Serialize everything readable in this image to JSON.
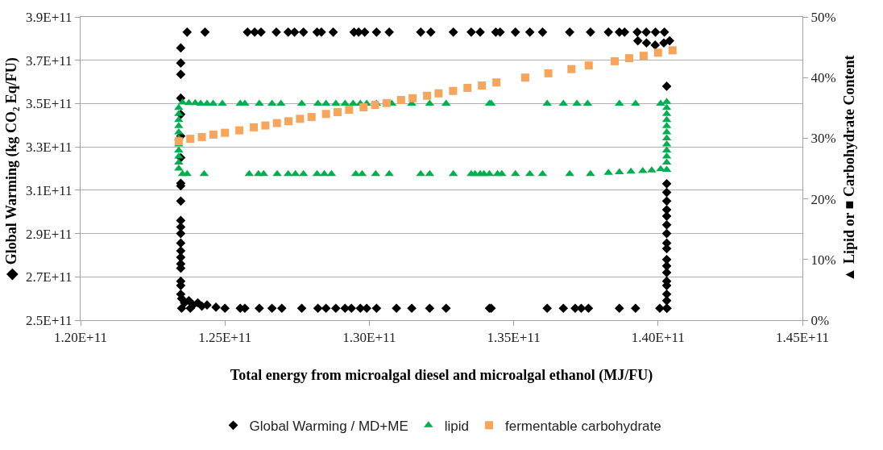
{
  "chart_data": {
    "type": "scatter",
    "xlabel": "Total energy from microalgal diesel and microalgal ethanol (MJ/FU)",
    "ylabel": "◆ Global Warming (kg CO₂ Eq/FU)",
    "y2label": "▲ Lipid or ■ Carbohydrate Content",
    "xlim": [
      120000000000.0,
      145000000000.0
    ],
    "xticks": [
      {
        "value": 120000000000.0,
        "label": "1.20E+11"
      },
      {
        "value": 125000000000.0,
        "label": "1.25E+11"
      },
      {
        "value": 130000000000.0,
        "label": "1.30E+11"
      },
      {
        "value": 135000000000.0,
        "label": "1.35E+11"
      },
      {
        "value": 140000000000.0,
        "label": "1.40E+11"
      },
      {
        "value": 145000000000.0,
        "label": "1.45E+11"
      }
    ],
    "ylim": [
      250000000000.0,
      390000000000.0
    ],
    "yticks": [
      {
        "value": 250000000000.0,
        "label": "2.5E+11"
      },
      {
        "value": 270000000000.0,
        "label": "2.7E+11"
      },
      {
        "value": 290000000000.0,
        "label": "2.9E+11"
      },
      {
        "value": 310000000000.0,
        "label": "3.1E+11"
      },
      {
        "value": 330000000000.0,
        "label": "3.3E+11"
      },
      {
        "value": 350000000000.0,
        "label": "3.5E+11"
      },
      {
        "value": 370000000000.0,
        "label": "3.7E+11"
      },
      {
        "value": 390000000000.0,
        "label": "3.9E+11"
      }
    ],
    "y2lim": [
      0,
      50
    ],
    "y2ticks": [
      {
        "value": 0,
        "label": "0%"
      },
      {
        "value": 10,
        "label": "10%"
      },
      {
        "value": 20,
        "label": "20%"
      },
      {
        "value": 30,
        "label": "30%"
      },
      {
        "value": 40,
        "label": "40%"
      },
      {
        "value": 50,
        "label": "50%"
      }
    ],
    "grid": "y",
    "legend": "bottom",
    "series": [
      {
        "name": "Global Warming / MD+ME",
        "color": "#000000",
        "marker": "diamond",
        "x": [
          123470000000.0,
          123470000000.0,
          123470000000.0,
          123470000000.0,
          123470000000.0,
          123470000000.0,
          123470000000.0,
          123470000000.0,
          123470000000.0,
          123470000000.0,
          123470000000.0,
          123470000000.0,
          123470000000.0,
          123470000000.0,
          123470000000.0,
          123470000000.0,
          123470000000.0,
          123470000000.0,
          123470000000.0,
          123470000000.0,
          123470000000.0,
          123690000000.0,
          124310000000.0,
          125780000000.0,
          126030000000.0,
          126250000000.0,
          126780000000.0,
          127190000000.0,
          127410000000.0,
          127720000000.0,
          128190000000.0,
          128340000000.0,
          128750000000.0,
          129470000000.0,
          129630000000.0,
          129840000000.0,
          130250000000.0,
          130690000000.0,
          131780000000.0,
          132130000000.0,
          132910000000.0,
          133530000000.0,
          133840000000.0,
          134380000000.0,
          134530000000.0,
          135060000000.0,
          135560000000.0,
          136000000000.0,
          136940000000.0,
          137660000000.0,
          138280000000.0,
          138660000000.0,
          138840000000.0,
          139280000000.0,
          139590000000.0,
          139910000000.0,
          140220000000.0,
          139300000000.0,
          139600000000.0,
          139900000000.0,
          140200000000.0,
          140400000000.0,
          140300000000.0,
          140300000000.0,
          140300000000.0,
          140300000000.0,
          140300000000.0,
          140300000000.0,
          140300000000.0,
          140300000000.0,
          140300000000.0,
          140300000000.0,
          140300000000.0,
          140300000000.0,
          140300000000.0,
          140300000000.0,
          140300000000.0,
          140300000000.0,
          140300000000.0,
          140300000000.0,
          123500000000.0,
          123600000000.0,
          123750000000.0,
          123900000000.0,
          124060000000.0,
          124200000000.0,
          124380000000.0,
          124690000000.0,
          125000000000.0,
          123500000000.0,
          123800000000.0,
          125530000000.0,
          125690000000.0,
          126190000000.0,
          126630000000.0,
          126970000000.0,
          127660000000.0,
          128220000000.0,
          128500000000.0,
          128840000000.0,
          129160000000.0,
          129380000000.0,
          129690000000.0,
          129910000000.0,
          130250000000.0,
          130940000000.0,
          131470000000.0,
          132090000000.0,
          132660000000.0,
          134160000000.0,
          134220000000.0,
          136160000000.0,
          136720000000.0,
          137130000000.0,
          137340000000.0,
          137590000000.0,
          138660000000.0,
          139220000000.0,
          140060000000.0,
          140310000000.0
        ],
        "values": [
          375700000000.0,
          368700000000.0,
          363500000000.0,
          352500000000.0,
          345000000000.0,
          335000000000.0,
          325000000000.0,
          313200000000.0,
          312000000000.0,
          305000000000.0,
          296000000000.0,
          293000000000.0,
          290000000000.0,
          285600000000.0,
          282000000000.0,
          279000000000.0,
          276000000000.0,
          274000000000.0,
          268000000000.0,
          266000000000.0,
          262000000000.0,
          383000000000.0,
          383000000000.0,
          383000000000.0,
          383000000000.0,
          383000000000.0,
          383000000000.0,
          383000000000.0,
          383000000000.0,
          383000000000.0,
          383000000000.0,
          383000000000.0,
          383000000000.0,
          383000000000.0,
          383000000000.0,
          383000000000.0,
          383000000000.0,
          383000000000.0,
          383000000000.0,
          383000000000.0,
          383000000000.0,
          383000000000.0,
          383000000000.0,
          383000000000.0,
          383000000000.0,
          383000000000.0,
          383000000000.0,
          383000000000.0,
          383000000000.0,
          383000000000.0,
          383000000000.0,
          383000000000.0,
          383000000000.0,
          383000000000.0,
          383000000000.0,
          383000000000.0,
          383000000000.0,
          379000000000.0,
          378000000000.0,
          377000000000.0,
          378000000000.0,
          379000000000.0,
          358000000000.0,
          313000000000.0,
          309000000000.0,
          305000000000.0,
          301000000000.0,
          298000000000.0,
          294000000000.0,
          290000000000.0,
          285600000000.0,
          283000000000.0,
          278000000000.0,
          275000000000.0,
          272000000000.0,
          268000000000.0,
          266000000000.0,
          262000000000.0,
          259000000000.0,
          255500000000.0,
          260000000000.0,
          258000000000.0,
          259000000000.0,
          257000000000.0,
          258000000000.0,
          256500000000.0,
          257000000000.0,
          256000000000.0,
          255500000000.0,
          255500000000.0,
          255500000000.0,
          255500000000.0,
          255500000000.0,
          255500000000.0,
          255500000000.0,
          255500000000.0,
          255500000000.0,
          255500000000.0,
          255500000000.0,
          255500000000.0,
          255500000000.0,
          255500000000.0,
          255500000000.0,
          255500000000.0,
          255500000000.0,
          255500000000.0,
          255500000000.0,
          255500000000.0,
          255500000000.0,
          255500000000.0,
          255500000000.0,
          255500000000.0,
          255500000000.0,
          255500000000.0,
          255500000000.0,
          255500000000.0,
          255500000000.0,
          255500000000.0,
          255500000000.0,
          255500000000.0
        ]
      },
      {
        "name": "lipid",
        "color": "#00b050",
        "marker": "triangle",
        "axis": "y2",
        "x": [
          123530000000.0,
          123750000000.0,
          123970000000.0,
          124160000000.0,
          124380000000.0,
          124590000000.0,
          124910000000.0,
          125530000000.0,
          125690000000.0,
          126190000000.0,
          126630000000.0,
          126940000000.0,
          127660000000.0,
          128220000000.0,
          128500000000.0,
          128840000000.0,
          129160000000.0,
          129440000000.0,
          129690000000.0,
          129910000000.0,
          130250000000.0,
          130780000000.0,
          131470000000.0,
          132090000000.0,
          132660000000.0,
          134160000000.0,
          134220000000.0,
          136160000000.0,
          136720000000.0,
          137190000000.0,
          137560000000.0,
          138660000000.0,
          139220000000.0,
          140090000000.0,
          123530000000.0,
          123690000000.0,
          124280000000.0,
          125840000000.0,
          126160000000.0,
          126340000000.0,
          126810000000.0,
          127190000000.0,
          127440000000.0,
          127720000000.0,
          128190000000.0,
          128440000000.0,
          128690000000.0,
          129530000000.0,
          129750000000.0,
          130220000000.0,
          130690000000.0,
          131780000000.0,
          132090000000.0,
          132910000000.0,
          133530000000.0,
          133840000000.0,
          134160000000.0,
          133660000000.0,
          133970000000.0,
          134440000000.0,
          134590000000.0,
          135060000000.0,
          135560000000.0,
          136000000000.0,
          136940000000.0,
          137660000000.0,
          138280000000.0,
          138660000000.0,
          139060000000.0,
          139470000000.0,
          139780000000.0,
          140090000000.0,
          123400000000.0,
          123400000000.0,
          123400000000.0,
          123400000000.0,
          123400000000.0,
          123400000000.0,
          123400000000.0,
          123400000000.0,
          123400000000.0,
          123400000000.0,
          123400000000.0,
          140300000000.0,
          140300000000.0,
          140300000000.0,
          140300000000.0,
          140300000000.0,
          140300000000.0,
          140300000000.0,
          140300000000.0,
          140300000000.0,
          140300000000.0,
          140300000000.0,
          140300000000.0
        ],
        "values": [
          35.9,
          35.8,
          35.8,
          35.7,
          35.7,
          35.7,
          35.7,
          35.7,
          35.7,
          35.7,
          35.7,
          35.7,
          35.7,
          35.7,
          35.7,
          35.7,
          35.7,
          35.7,
          35.7,
          35.7,
          35.7,
          35.7,
          35.7,
          35.7,
          35.7,
          35.7,
          35.7,
          35.7,
          35.7,
          35.7,
          35.7,
          35.7,
          35.7,
          35.7,
          24.1,
          24.1,
          24.1,
          24.1,
          24.1,
          24.1,
          24.1,
          24.1,
          24.1,
          24.1,
          24.1,
          24.1,
          24.1,
          24.1,
          24.1,
          24.1,
          24.1,
          24.1,
          24.1,
          24.1,
          24.1,
          24.1,
          24.1,
          24.1,
          24.1,
          24.1,
          24.1,
          24.1,
          24.1,
          24.1,
          24.1,
          24.1,
          24.3,
          24.4,
          24.5,
          24.6,
          24.7,
          24.9,
          25,
          26,
          27,
          28,
          29,
          30,
          31,
          32,
          33,
          34,
          35,
          24.8,
          26,
          27,
          28,
          29,
          30,
          31,
          32,
          33,
          34,
          35,
          36
        ]
      },
      {
        "name": "fermentable carbohydrate",
        "color": "#f7a55a",
        "marker": "square",
        "axis": "y2",
        "x": [
          123400000000.0,
          123800000000.0,
          124200000000.0,
          124600000000.0,
          125000000000.0,
          125500000000.0,
          126000000000.0,
          126400000000.0,
          126800000000.0,
          127200000000.0,
          127600000000.0,
          128000000000.0,
          128500000000.0,
          128900000000.0,
          129300000000.0,
          129800000000.0,
          130200000000.0,
          130600000000.0,
          131100000000.0,
          131500000000.0,
          132000000000.0,
          132400000000.0,
          132900000000.0,
          133400000000.0,
          133900000000.0,
          134400000000.0,
          135400000000.0,
          136200000000.0,
          137000000000.0,
          137600000000.0,
          138500000000.0,
          139000000000.0,
          139500000000.0,
          140000000000.0,
          140500000000.0
        ],
        "values": [
          29.5,
          29.9,
          30.2,
          30.6,
          30.9,
          31.3,
          31.8,
          32.1,
          32.5,
          32.8,
          33.2,
          33.5,
          34.0,
          34.3,
          34.7,
          35.1,
          35.5,
          35.8,
          36.3,
          36.6,
          37.0,
          37.4,
          37.8,
          38.3,
          38.7,
          39.2,
          40.0,
          40.7,
          41.4,
          42.0,
          42.7,
          43.2,
          43.6,
          44.1,
          44.5
        ]
      }
    ]
  }
}
